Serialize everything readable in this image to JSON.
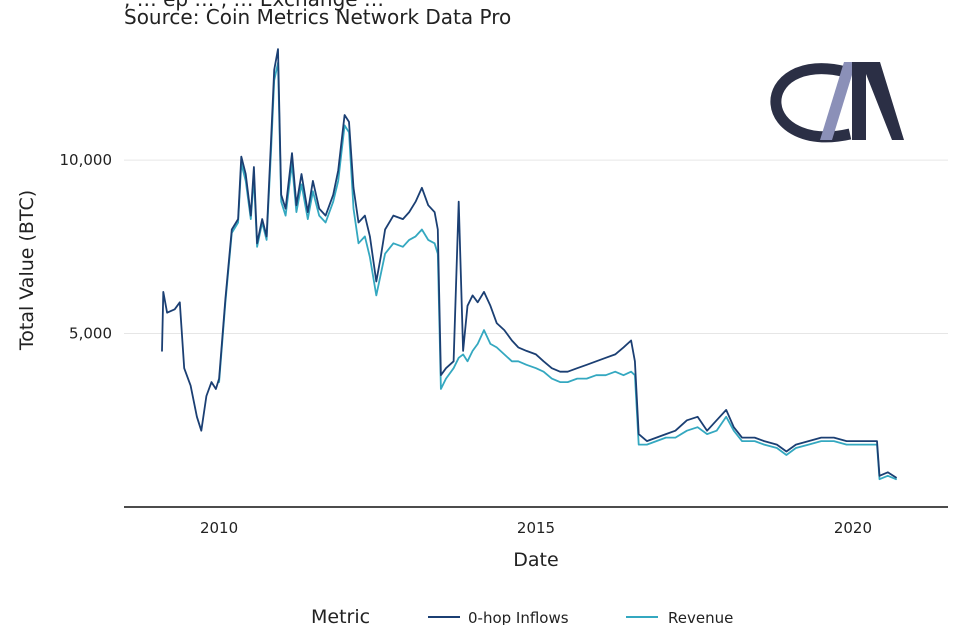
{
  "header": {
    "title_fragment": ", … ep … , … Exchange …",
    "source": "Source: Coin Metrics Network Data Pro"
  },
  "logo": {
    "text": "CM",
    "color": "#2b2f45"
  },
  "chart_data": {
    "type": "line",
    "xlabel": "Date",
    "ylabel": "Total Value (BTC)",
    "x_ticks": [
      2010,
      2015,
      2020
    ],
    "y_ticks": [
      5000,
      10000
    ],
    "y_tick_labels": [
      "5,000",
      "10,000"
    ],
    "xlim": [
      2008.5,
      2021.5
    ],
    "ylim": [
      0,
      13000
    ],
    "grid": true,
    "legend": {
      "title": "Metric",
      "placement": "bottom"
    },
    "series": [
      {
        "name": "0-hop Inflows",
        "color": "#1b3f73",
        "points": [
          [
            2009.1,
            4500
          ],
          [
            2009.12,
            6200
          ],
          [
            2009.18,
            5600
          ],
          [
            2009.3,
            5700
          ],
          [
            2009.38,
            5900
          ],
          [
            2009.45,
            4000
          ],
          [
            2009.55,
            3500
          ],
          [
            2009.65,
            2600
          ],
          [
            2009.72,
            2200
          ],
          [
            2009.8,
            3200
          ],
          [
            2009.88,
            3600
          ],
          [
            2009.95,
            3400
          ],
          [
            2010.0,
            3700
          ],
          [
            2010.1,
            6000
          ],
          [
            2010.2,
            8000
          ],
          [
            2010.3,
            8300
          ],
          [
            2010.35,
            10100
          ],
          [
            2010.42,
            9600
          ],
          [
            2010.5,
            8400
          ],
          [
            2010.55,
            9800
          ],
          [
            2010.6,
            7600
          ],
          [
            2010.68,
            8300
          ],
          [
            2010.75,
            7800
          ],
          [
            2010.82,
            10600
          ],
          [
            2010.87,
            12600
          ],
          [
            2010.93,
            13200
          ],
          [
            2010.98,
            9000
          ],
          [
            2011.05,
            8600
          ],
          [
            2011.15,
            10200
          ],
          [
            2011.22,
            8700
          ],
          [
            2011.3,
            9600
          ],
          [
            2011.4,
            8500
          ],
          [
            2011.48,
            9400
          ],
          [
            2011.58,
            8600
          ],
          [
            2011.68,
            8400
          ],
          [
            2011.8,
            9000
          ],
          [
            2011.88,
            9700
          ],
          [
            2011.98,
            11300
          ],
          [
            2012.05,
            11100
          ],
          [
            2012.12,
            9200
          ],
          [
            2012.2,
            8200
          ],
          [
            2012.3,
            8400
          ],
          [
            2012.38,
            7800
          ],
          [
            2012.48,
            6500
          ],
          [
            2012.55,
            7200
          ],
          [
            2012.62,
            8000
          ],
          [
            2012.75,
            8400
          ],
          [
            2012.9,
            8300
          ],
          [
            2013.0,
            8500
          ],
          [
            2013.1,
            8800
          ],
          [
            2013.2,
            9200
          ],
          [
            2013.3,
            8700
          ],
          [
            2013.4,
            8500
          ],
          [
            2013.45,
            8000
          ],
          [
            2013.5,
            3800
          ],
          [
            2013.58,
            4000
          ],
          [
            2013.7,
            4200
          ],
          [
            2013.78,
            8800
          ],
          [
            2013.85,
            4500
          ],
          [
            2013.92,
            5800
          ],
          [
            2014.0,
            6100
          ],
          [
            2014.08,
            5900
          ],
          [
            2014.18,
            6200
          ],
          [
            2014.28,
            5800
          ],
          [
            2014.38,
            5300
          ],
          [
            2014.5,
            5100
          ],
          [
            2014.62,
            4800
          ],
          [
            2014.72,
            4600
          ],
          [
            2014.85,
            4500
          ],
          [
            2015.0,
            4400
          ],
          [
            2015.12,
            4200
          ],
          [
            2015.25,
            4000
          ],
          [
            2015.38,
            3900
          ],
          [
            2015.5,
            3900
          ],
          [
            2015.65,
            4000
          ],
          [
            2015.8,
            4100
          ],
          [
            2015.95,
            4200
          ],
          [
            2016.1,
            4300
          ],
          [
            2016.25,
            4400
          ],
          [
            2016.38,
            4600
          ],
          [
            2016.5,
            4800
          ],
          [
            2016.56,
            4200
          ],
          [
            2016.62,
            2100
          ],
          [
            2016.75,
            1900
          ],
          [
            2016.9,
            2000
          ],
          [
            2017.05,
            2100
          ],
          [
            2017.2,
            2200
          ],
          [
            2017.38,
            2500
          ],
          [
            2017.55,
            2600
          ],
          [
            2017.7,
            2200
          ],
          [
            2017.85,
            2500
          ],
          [
            2018.0,
            2800
          ],
          [
            2018.12,
            2300
          ],
          [
            2018.25,
            2000
          ],
          [
            2018.45,
            2000
          ],
          [
            2018.6,
            1900
          ],
          [
            2018.8,
            1800
          ],
          [
            2018.95,
            1600
          ],
          [
            2019.1,
            1800
          ],
          [
            2019.3,
            1900
          ],
          [
            2019.5,
            2000
          ],
          [
            2019.7,
            2000
          ],
          [
            2019.9,
            1900
          ],
          [
            2020.1,
            1900
          ],
          [
            2020.28,
            1900
          ],
          [
            2020.38,
            1900
          ],
          [
            2020.42,
            900
          ],
          [
            2020.55,
            1000
          ],
          [
            2020.68,
            850
          ]
        ]
      },
      {
        "name": "Revenue",
        "color": "#34a8c0",
        "points": [
          [
            2010.0,
            3600
          ],
          [
            2010.1,
            5900
          ],
          [
            2010.2,
            7900
          ],
          [
            2010.3,
            8200
          ],
          [
            2010.35,
            9900
          ],
          [
            2010.42,
            9400
          ],
          [
            2010.5,
            8300
          ],
          [
            2010.55,
            9500
          ],
          [
            2010.6,
            7500
          ],
          [
            2010.68,
            8200
          ],
          [
            2010.75,
            7700
          ],
          [
            2010.82,
            10300
          ],
          [
            2010.87,
            12300
          ],
          [
            2010.93,
            12800
          ],
          [
            2010.98,
            8800
          ],
          [
            2011.05,
            8400
          ],
          [
            2011.15,
            9900
          ],
          [
            2011.22,
            8500
          ],
          [
            2011.3,
            9300
          ],
          [
            2011.4,
            8300
          ],
          [
            2011.48,
            9100
          ],
          [
            2011.58,
            8400
          ],
          [
            2011.68,
            8200
          ],
          [
            2011.8,
            8800
          ],
          [
            2011.88,
            9400
          ],
          [
            2011.98,
            11000
          ],
          [
            2012.05,
            10800
          ],
          [
            2012.12,
            8600
          ],
          [
            2012.2,
            7600
          ],
          [
            2012.3,
            7800
          ],
          [
            2012.38,
            7200
          ],
          [
            2012.48,
            6100
          ],
          [
            2012.55,
            6700
          ],
          [
            2012.62,
            7300
          ],
          [
            2012.75,
            7600
          ],
          [
            2012.9,
            7500
          ],
          [
            2013.0,
            7700
          ],
          [
            2013.1,
            7800
          ],
          [
            2013.2,
            8000
          ],
          [
            2013.3,
            7700
          ],
          [
            2013.4,
            7600
          ],
          [
            2013.45,
            7300
          ],
          [
            2013.5,
            3400
          ],
          [
            2013.58,
            3700
          ],
          [
            2013.7,
            4000
          ],
          [
            2013.78,
            4300
          ],
          [
            2013.85,
            4400
          ],
          [
            2013.92,
            4200
          ],
          [
            2014.0,
            4500
          ],
          [
            2014.08,
            4700
          ],
          [
            2014.18,
            5100
          ],
          [
            2014.28,
            4700
          ],
          [
            2014.38,
            4600
          ],
          [
            2014.5,
            4400
          ],
          [
            2014.62,
            4200
          ],
          [
            2014.72,
            4200
          ],
          [
            2014.85,
            4100
          ],
          [
            2015.0,
            4000
          ],
          [
            2015.12,
            3900
          ],
          [
            2015.25,
            3700
          ],
          [
            2015.38,
            3600
          ],
          [
            2015.5,
            3600
          ],
          [
            2015.65,
            3700
          ],
          [
            2015.8,
            3700
          ],
          [
            2015.95,
            3800
          ],
          [
            2016.1,
            3800
          ],
          [
            2016.25,
            3900
          ],
          [
            2016.38,
            3800
          ],
          [
            2016.5,
            3900
          ],
          [
            2016.56,
            3800
          ],
          [
            2016.62,
            1800
          ],
          [
            2016.75,
            1800
          ],
          [
            2016.9,
            1900
          ],
          [
            2017.05,
            2000
          ],
          [
            2017.2,
            2000
          ],
          [
            2017.38,
            2200
          ],
          [
            2017.55,
            2300
          ],
          [
            2017.7,
            2100
          ],
          [
            2017.85,
            2200
          ],
          [
            2018.0,
            2600
          ],
          [
            2018.12,
            2200
          ],
          [
            2018.25,
            1900
          ],
          [
            2018.45,
            1900
          ],
          [
            2018.6,
            1800
          ],
          [
            2018.8,
            1700
          ],
          [
            2018.95,
            1500
          ],
          [
            2019.1,
            1700
          ],
          [
            2019.3,
            1800
          ],
          [
            2019.5,
            1900
          ],
          [
            2019.7,
            1900
          ],
          [
            2019.9,
            1800
          ],
          [
            2020.1,
            1800
          ],
          [
            2020.28,
            1800
          ],
          [
            2020.38,
            1800
          ],
          [
            2020.42,
            800
          ],
          [
            2020.55,
            900
          ],
          [
            2020.68,
            800
          ]
        ]
      }
    ]
  }
}
